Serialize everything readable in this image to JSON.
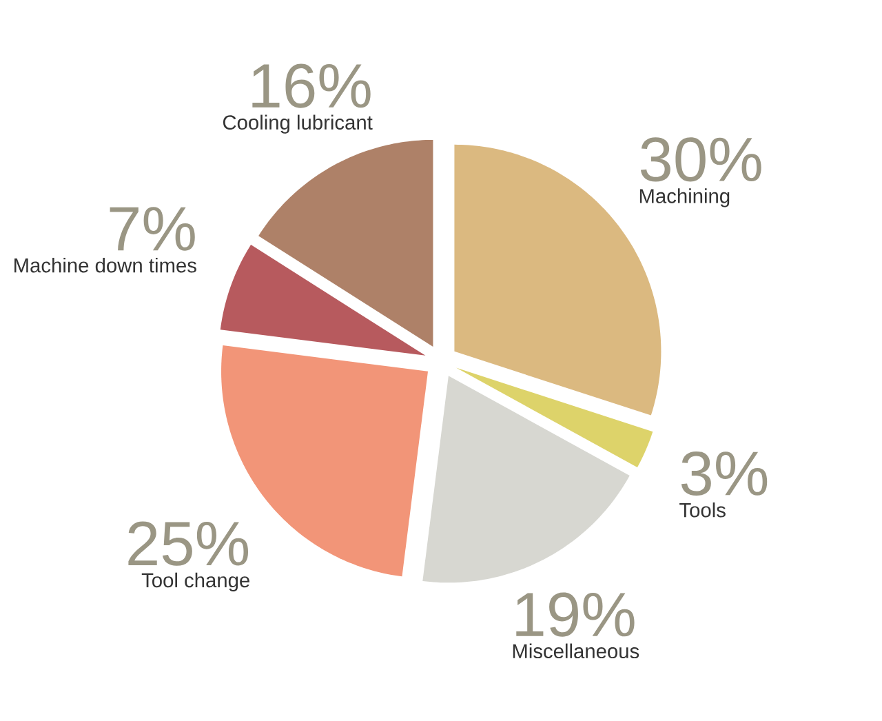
{
  "chart_data": {
    "type": "pie",
    "categories": [
      "Machining",
      "Tools",
      "Miscellaneous",
      "Tool change",
      "Machine down times",
      "Cooling lubricant"
    ],
    "values": [
      30,
      3,
      19,
      25,
      7,
      16
    ],
    "value_labels": [
      "30%",
      "3%",
      "19%",
      "25%",
      "7%",
      "16%"
    ],
    "colors": [
      "#dbb980",
      "#ddd36a",
      "#d7d7d1",
      "#f29578",
      "#b75a5e",
      "#ae8168"
    ]
  }
}
